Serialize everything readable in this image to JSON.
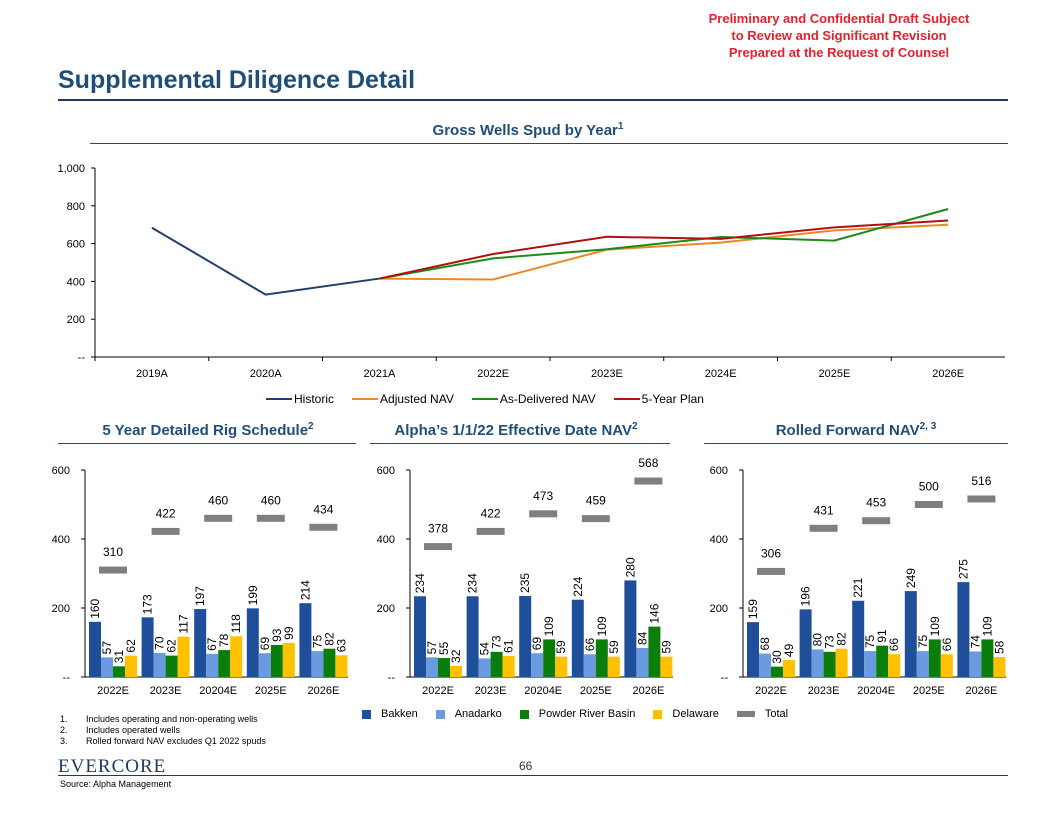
{
  "confidential": [
    "Preliminary and Confidential Draft Subject",
    "to Review and Significant Revision",
    "Prepared at the Request of Counsel"
  ],
  "page_title": "Supplemental Diligence Detail",
  "sections": {
    "top_title": "Gross Wells Spud by Year",
    "top_sup": "1",
    "rig_title": "5 Year Detailed Rig Schedule",
    "rig_sup": "2",
    "alpha_title": "Alpha’s 1/1/22 Effective Date NAV",
    "alpha_sup": "2",
    "rolled_title": "Rolled Forward NAV",
    "rolled_sup": "2, 3"
  },
  "colors": {
    "historic": "#1f3f6e",
    "adjusted": "#e8892a",
    "delivered": "#1a8a1a",
    "plan": "#b01010",
    "bakken": "#1f4e9a",
    "anadarko": "#6a9be0",
    "prb": "#0b7d0b",
    "delaware": "#ffc000",
    "total": "#7f7f7f"
  },
  "chart_data": [
    {
      "type": "line",
      "title": "Gross Wells Spud by Year",
      "categories": [
        "2019A",
        "2020A",
        "2021A",
        "2022E",
        "2023E",
        "2024E",
        "2025E",
        "2026E"
      ],
      "ylim": [
        0,
        1000
      ],
      "yticks": [
        "--",
        "200",
        "400",
        "600",
        "800",
        "1,000"
      ],
      "series": [
        {
          "name": "Historic",
          "values": [
            684,
            330,
            415,
            null,
            null,
            null,
            null,
            null
          ]
        },
        {
          "name": "Adjusted NAV",
          "values": [
            null,
            null,
            415,
            410,
            568,
            605,
            670,
            700
          ]
        },
        {
          "name": "As-Delivered NAV",
          "values": [
            null,
            null,
            415,
            522,
            570,
            635,
            616,
            783
          ]
        },
        {
          "name": "5-Year Plan",
          "values": [
            null,
            null,
            415,
            545,
            636,
            625,
            686,
            722
          ]
        }
      ]
    },
    {
      "type": "bar",
      "title": "5 Year Detailed Rig Schedule",
      "categories": [
        "2022E",
        "2023E",
        "20204E",
        "2025E",
        "2026E"
      ],
      "ylim": [
        0,
        600
      ],
      "yticks": [
        "--",
        "200",
        "400",
        "600"
      ],
      "series": [
        {
          "name": "Bakken",
          "values": [
            160,
            173,
            197,
            199,
            214
          ]
        },
        {
          "name": "Anadarko",
          "values": [
            57,
            70,
            67,
            69,
            75
          ]
        },
        {
          "name": "Powder River Basin",
          "values": [
            31,
            62,
            78,
            93,
            82
          ]
        },
        {
          "name": "Delaware",
          "values": [
            62,
            117,
            118,
            99,
            63
          ]
        }
      ],
      "totals": [
        310,
        422,
        460,
        460,
        434
      ]
    },
    {
      "type": "bar",
      "title": "Alpha’s 1/1/22 Effective Date NAV",
      "categories": [
        "2022E",
        "2023E",
        "20204E",
        "2025E",
        "2026E"
      ],
      "ylim": [
        0,
        600
      ],
      "yticks": [
        "--",
        "200",
        "400",
        "600"
      ],
      "series": [
        {
          "name": "Bakken",
          "values": [
            234,
            234,
            235,
            224,
            280
          ]
        },
        {
          "name": "Anadarko",
          "values": [
            57,
            54,
            69,
            66,
            84
          ]
        },
        {
          "name": "Powder River Basin",
          "values": [
            55,
            73,
            109,
            109,
            146
          ]
        },
        {
          "name": "Delaware",
          "values": [
            32,
            61,
            59,
            59,
            59
          ]
        }
      ],
      "totals": [
        378,
        422,
        473,
        459,
        568
      ]
    },
    {
      "type": "bar",
      "title": "Rolled Forward NAV",
      "categories": [
        "2022E",
        "2023E",
        "20204E",
        "2025E",
        "2026E"
      ],
      "ylim": [
        0,
        600
      ],
      "yticks": [
        "--",
        "200",
        "400",
        "600"
      ],
      "series": [
        {
          "name": "Bakken",
          "values": [
            159,
            196,
            221,
            249,
            275
          ]
        },
        {
          "name": "Anadarko",
          "values": [
            68,
            80,
            75,
            75,
            74
          ]
        },
        {
          "name": "Powder River Basin",
          "values": [
            30,
            73,
            91,
            109,
            109
          ]
        },
        {
          "name": "Delaware",
          "values": [
            49,
            82,
            66,
            66,
            58
          ]
        }
      ],
      "totals": [
        306,
        431,
        453,
        500,
        516
      ]
    }
  ],
  "line_legend": [
    "Historic",
    "Adjusted NAV",
    "As-Delivered NAV",
    "5-Year Plan"
  ],
  "bar_legend": [
    "Bakken",
    "Anadarko",
    "Powder River Basin",
    "Delaware",
    "Total"
  ],
  "footnotes": [
    {
      "num": "1.",
      "text": "Includes operating and non-operating wells"
    },
    {
      "num": "2.",
      "text": "Includes operated wells"
    },
    {
      "num": "3.",
      "text": "Rolled forward NAV excludes Q1 2022 spuds"
    }
  ],
  "logo": "EVERCORE",
  "page_number": "66",
  "source": "Source: Alpha Management"
}
